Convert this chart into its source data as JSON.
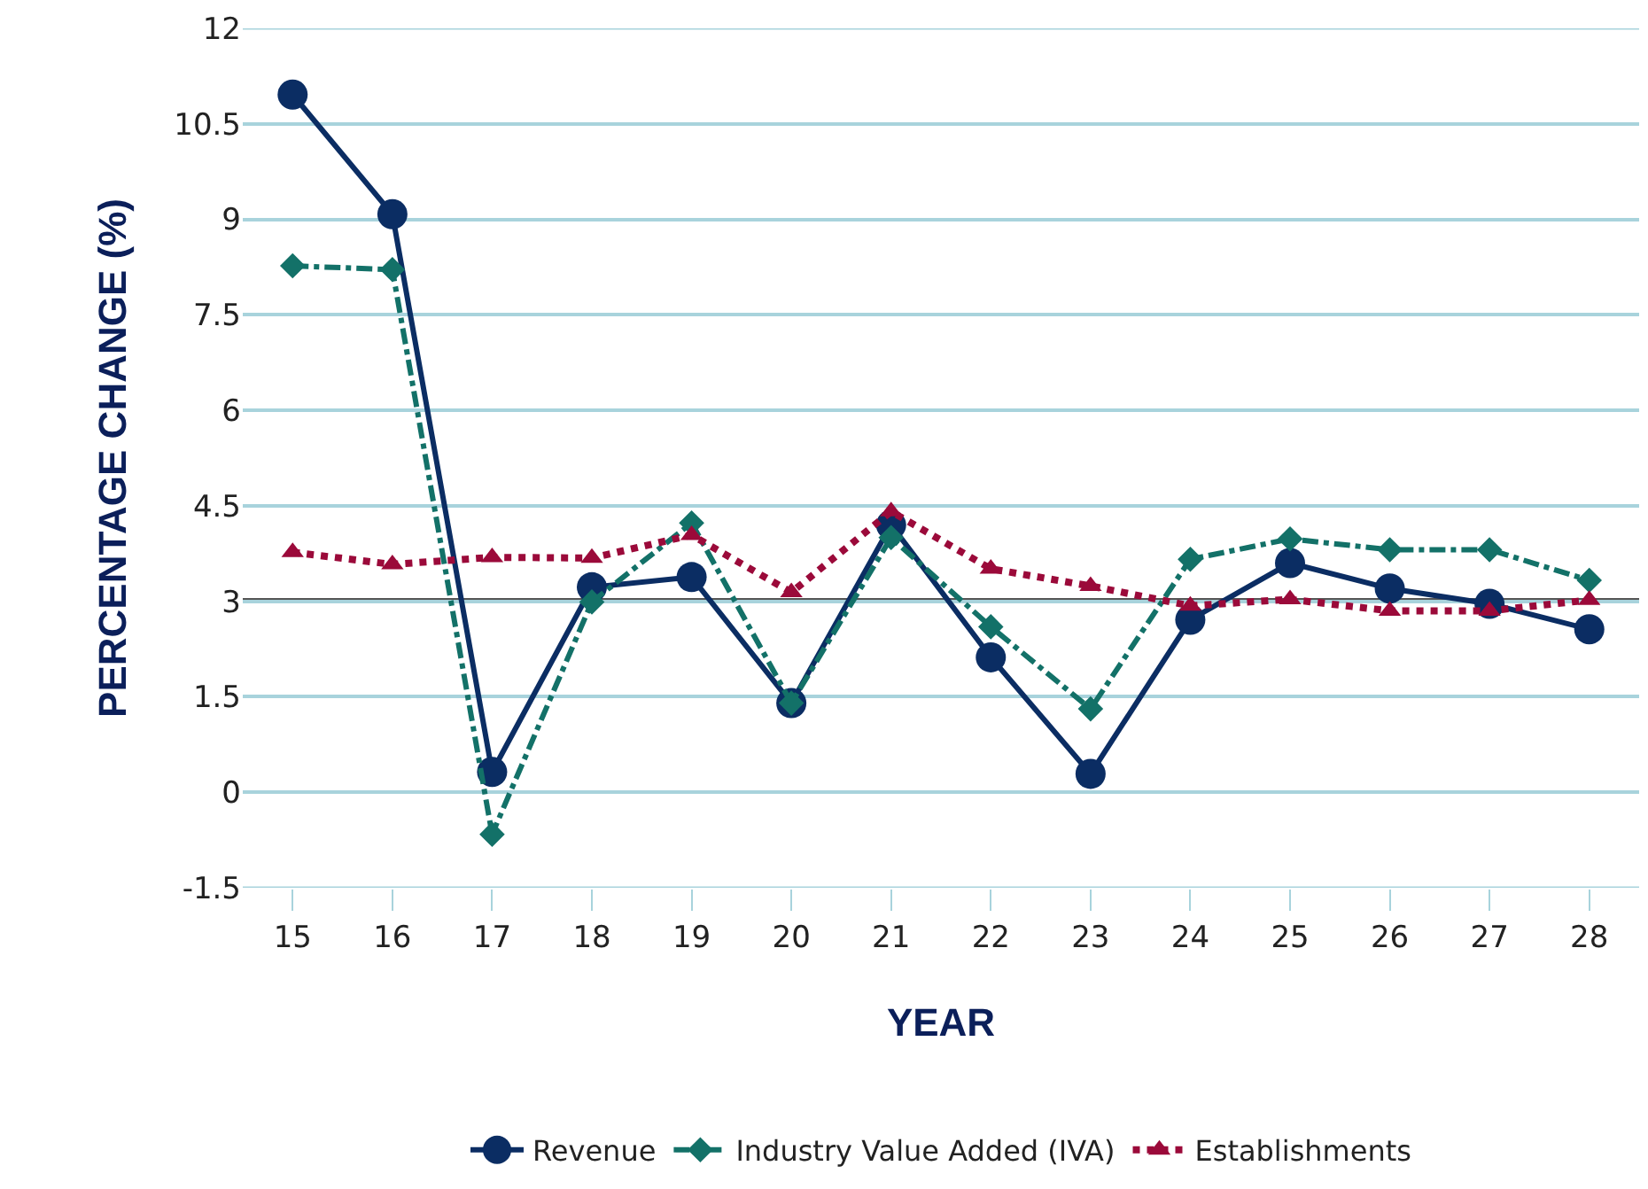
{
  "chart_data": {
    "type": "line",
    "xlabel": "YEAR",
    "ylabel": "PERCENTAGE CHANGE (%)",
    "categories": [
      "15",
      "16",
      "17",
      "18",
      "19",
      "20",
      "21",
      "22",
      "23",
      "24",
      "25",
      "26",
      "27",
      "28"
    ],
    "series": [
      {
        "name": "Revenue",
        "color": "#0b2d63",
        "marker": "circle",
        "line_style": "solid",
        "values": [
          10.96,
          9.08,
          0.32,
          3.22,
          3.38,
          1.4,
          4.2,
          2.12,
          0.29,
          2.71,
          3.6,
          3.2,
          2.96,
          2.56
        ]
      },
      {
        "name": "Industry Value Added (IVA)",
        "color": "#137168",
        "marker": "diamond",
        "line_style": "dashed",
        "values": [
          8.27,
          8.21,
          -0.66,
          2.99,
          4.23,
          1.4,
          4.0,
          2.6,
          1.31,
          3.66,
          3.98,
          3.81,
          3.81,
          3.33
        ]
      },
      {
        "name": "Establishments",
        "color": "#9b0a3a",
        "marker": "triangle",
        "line_style": "dotted",
        "values": [
          3.77,
          3.58,
          3.69,
          3.68,
          4.04,
          3.14,
          4.41,
          3.51,
          3.24,
          2.93,
          3.03,
          2.85,
          2.85,
          3.02
        ]
      }
    ],
    "ylim": [
      -1.5,
      12
    ],
    "yticks": [
      -1.5,
      0,
      1.5,
      3,
      4.5,
      6,
      7.5,
      9,
      10.5,
      12
    ],
    "ref_lines": [
      {
        "axis": "y",
        "value": 3.03,
        "color": "#555555"
      }
    ],
    "grid": "y",
    "legend": "bottom"
  }
}
